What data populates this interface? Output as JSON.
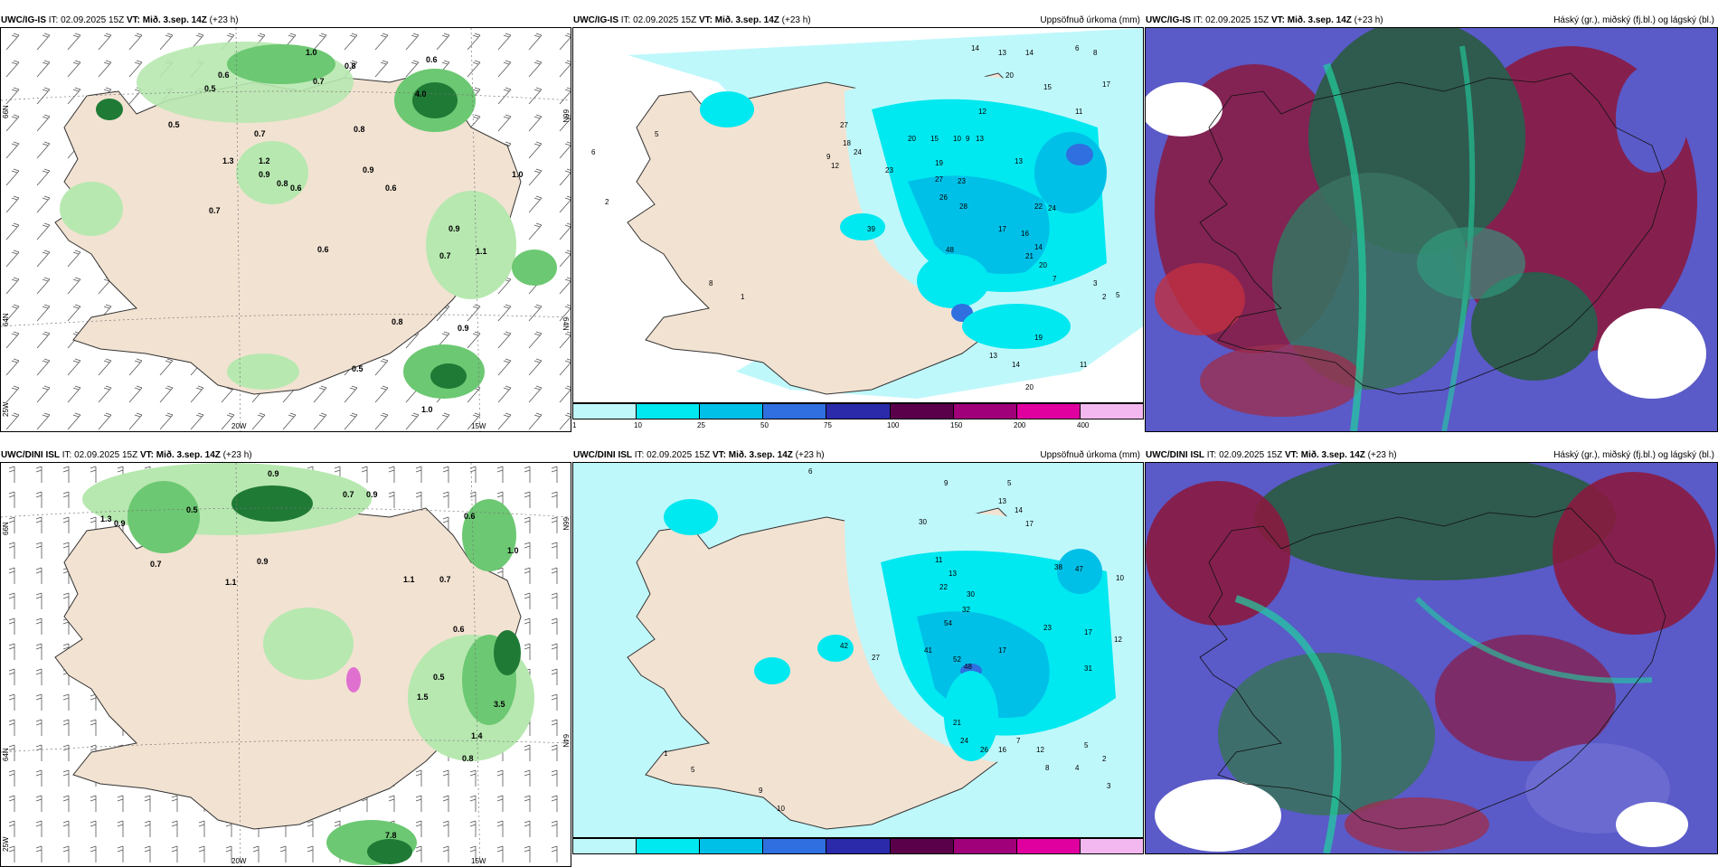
{
  "panels": [
    {
      "id": "p1",
      "model": "UWC/IG-IS",
      "it_label": "IT:",
      "it": "02.09.2025 15Z",
      "vt_label": "VT:",
      "vt": "Mið. 3.sep. 14Z",
      "lead": "(+23 h)",
      "right": ""
    },
    {
      "id": "p2",
      "model": "UWC/IG-IS",
      "it_label": "IT:",
      "it": "02.09.2025 15Z",
      "vt_label": "VT:",
      "vt": "Mið. 3.sep. 14Z",
      "lead": "(+23 h)",
      "right": "Uppsöfnuð úrkoma (mm)"
    },
    {
      "id": "p3",
      "model": "UWC/IG-IS",
      "it_label": "IT:",
      "it": "02.09.2025 15Z",
      "vt_label": "VT:",
      "vt": "Mið. 3.sep. 14Z",
      "lead": "(+23 h)",
      "right": "Háský (gr.), miðský (fj.bl.) og lágský (bl.)"
    },
    {
      "id": "p4",
      "model": "UWC/DINI ISL",
      "it_label": "IT:",
      "it": "02.09.2025 15Z",
      "vt_label": "VT:",
      "vt": "Mið. 3.sep. 14Z",
      "lead": "(+23 h)",
      "right": ""
    },
    {
      "id": "p5",
      "model": "UWC/DINI ISL",
      "it_label": "IT:",
      "it": "02.09.2025 15Z",
      "vt_label": "VT:",
      "vt": "Mið. 3.sep. 14Z",
      "lead": "(+23 h)",
      "right": "Uppsöfnuð úrkoma (mm)"
    },
    {
      "id": "p6",
      "model": "UWC/DINI ISL",
      "it_label": "IT:",
      "it": "02.09.2025 15Z",
      "vt_label": "VT:",
      "vt": "Mið. 3.sep. 14Z",
      "lead": "(+23 h)",
      "right": "Háský (gr.), miðský (fj.bl.) og lágský (bl.)"
    }
  ],
  "axis_labels": {
    "lat66": "66N",
    "lat64": "64N",
    "lon20": "20W",
    "lon15": "15W",
    "lon25": "25W"
  },
  "colorbar": {
    "ticks": [
      "1",
      "10",
      "25",
      "50",
      "75",
      "100",
      "150",
      "200",
      "400"
    ],
    "colors": [
      "#bff8fb",
      "#00e8f0",
      "#00c0e8",
      "#2f6fe0",
      "#2a2aaa",
      "#5a004a",
      "#a0007a",
      "#e000a0",
      "#f4b8f0"
    ]
  },
  "colors": {
    "land": "#f2e2d2",
    "precip_light": "#b7e8b0",
    "precip_mid": "#6cc872",
    "precip_dark": "#1f7a35",
    "accum_light": "#bff8fb",
    "accum_mid": "#00e8f0",
    "accum_dark": "#00c0e8",
    "high_cloud": "#2f5a4e",
    "mid_cloud": "#8a1a40",
    "low_cloud": "#5a5ac8"
  },
  "top_precip_labels": [
    "0.6",
    "0.8",
    "1.0",
    "0.6",
    "0.5",
    "0.7",
    "0.5",
    "0.8",
    "0.7",
    "4.0",
    "1.3",
    "1.2",
    "0.9",
    "0.8",
    "0.6",
    "0.9",
    "0.6",
    "0.7",
    "1.0",
    "0.9",
    "1.1",
    "0.7",
    "0.6",
    "0.8",
    "0.5",
    "0.9",
    "1.0"
  ],
  "bottom_precip_labels": [
    "0.9",
    "0.5",
    "1.3",
    "0.9",
    "0.7",
    "1.1",
    "0.9",
    "0.7",
    "0.9",
    "0.6",
    "1.1",
    "0.7",
    "0.6",
    "0.5",
    "0.8",
    "1.0",
    "1.4",
    "3.5",
    "7.8",
    "1.5"
  ],
  "top_accum_labels": [
    "14",
    "13",
    "14",
    "6",
    "8",
    "20",
    "17",
    "15",
    "11",
    "27",
    "12",
    "18",
    "24",
    "13",
    "9",
    "12",
    "20",
    "15",
    "10",
    "9",
    "13",
    "23",
    "27",
    "23",
    "19",
    "26",
    "28",
    "22",
    "24",
    "39",
    "48",
    "17",
    "16",
    "14",
    "21",
    "20",
    "7",
    "3",
    "2",
    "5",
    "6",
    "5",
    "2",
    "1",
    "8",
    "13",
    "14",
    "19",
    "11",
    "20"
  ],
  "bottom_accum_labels": [
    "6",
    "9",
    "5",
    "13",
    "14",
    "17",
    "30",
    "11",
    "13",
    "22",
    "30",
    "32",
    "54",
    "41",
    "52",
    "48",
    "17",
    "21",
    "24",
    "26",
    "7",
    "16",
    "12",
    "8",
    "38",
    "47",
    "10",
    "23",
    "17",
    "12",
    "31",
    "5",
    "2",
    "4",
    "3",
    "1",
    "5",
    "9",
    "10",
    "42",
    "27"
  ]
}
